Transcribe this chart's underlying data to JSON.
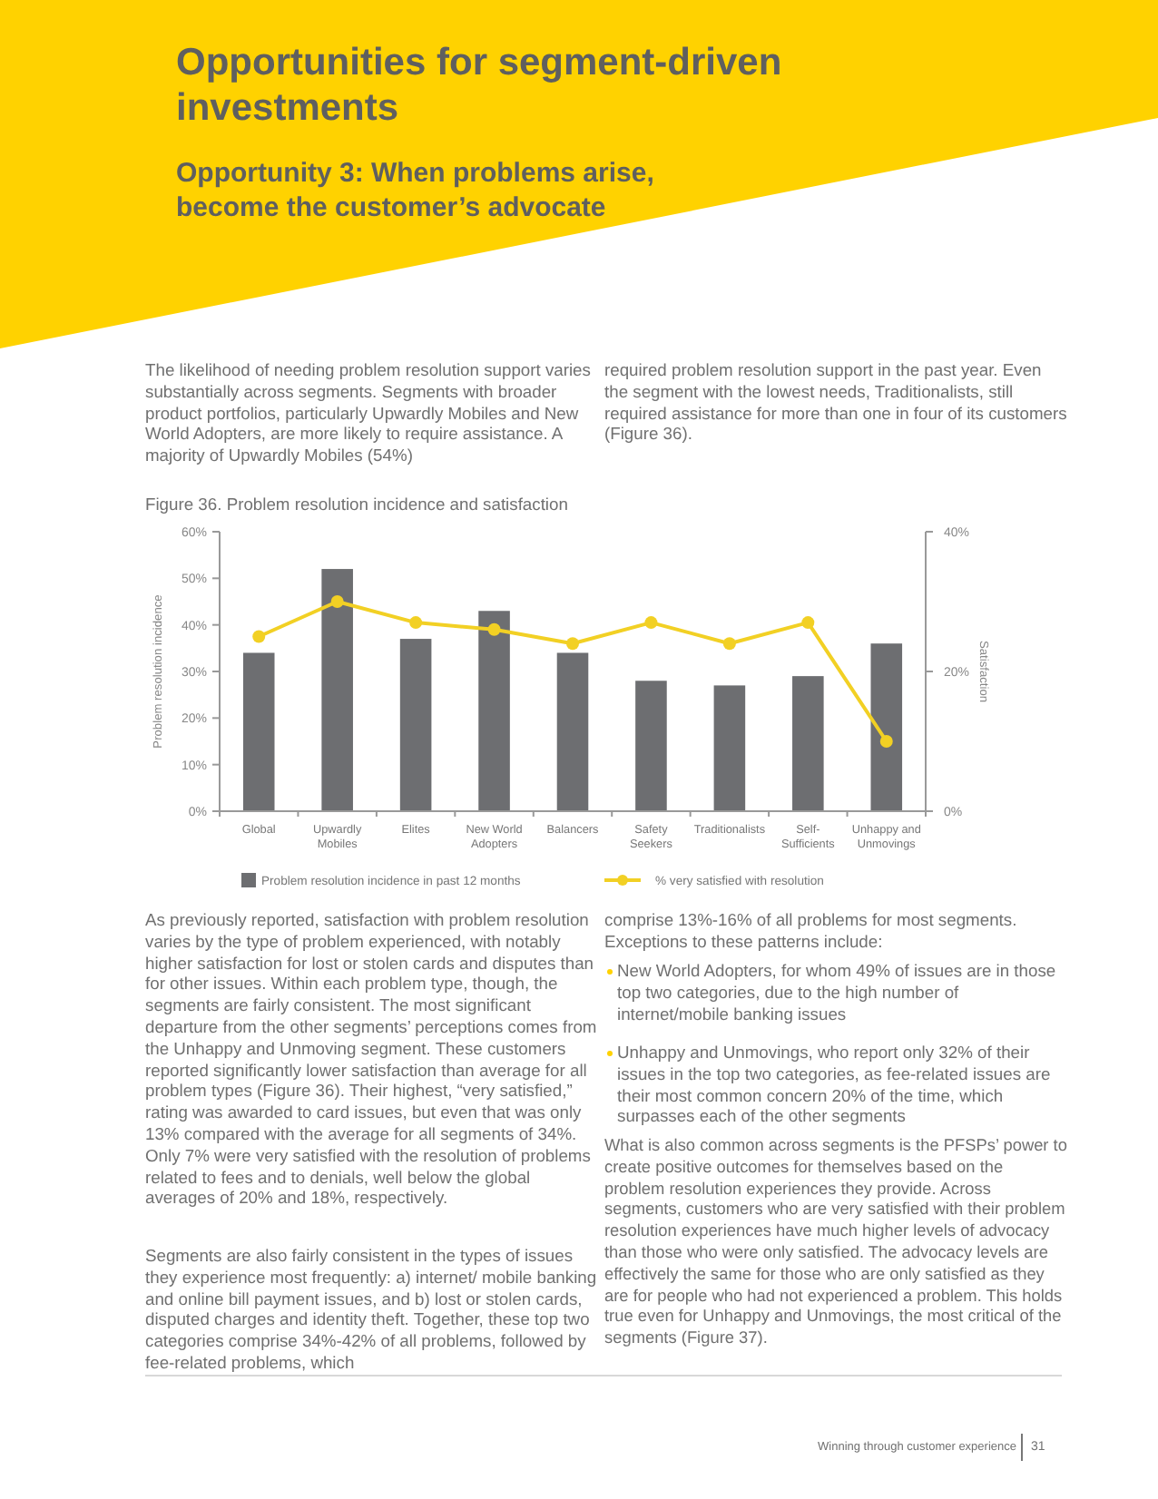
{
  "chart_data": {
    "type": "bar",
    "title": "Opportunities for segment-driven investments",
    "subtitle": "Opportunity 3: When problems arise, become the customer’s advocate",
    "ylabel": "Problem resolution incidence",
    "y2label": "Satisfaction",
    "categories": [
      "Global",
      "Upwardly Mobiles",
      "Elites",
      "New World Adopters",
      "Balancers",
      "Safety Seekers",
      "Traditionalists",
      "Self-Sufficients",
      "Unhappy and Unmovings"
    ],
    "series": [
      {
        "name": "Problem resolution incidence in past 12 months",
        "color": "#6d6e71",
        "values": [
          34,
          52,
          37,
          43,
          34,
          28,
          27,
          29,
          36
        ]
      },
      {
        "name": "% very satisfied with resolution",
        "type": "line",
        "axis": "y2",
        "color": "#f2d024",
        "values": [
          25,
          30,
          27,
          26,
          24,
          27,
          24,
          27,
          10
        ]
      }
    ],
    "ylim": [
      0,
      60
    ],
    "yticks": [
      {
        "value": 0,
        "label": "0%"
      },
      {
        "value": 10,
        "label": "10%"
      },
      {
        "value": 20,
        "label": "20%"
      },
      {
        "value": 30,
        "label": "30%"
      },
      {
        "value": 40,
        "label": "40%"
      },
      {
        "value": 50,
        "label": "50%"
      },
      {
        "value": 60,
        "label": "60%"
      }
    ],
    "y2lim": [
      0,
      40
    ],
    "y2ticks": [
      {
        "value": 0,
        "label": "0%"
      },
      {
        "value": 20,
        "label": "20%"
      },
      {
        "value": 40,
        "label": "40%"
      }
    ],
    "grid": false,
    "legend": "bottom",
    "marker": "circle",
    "line_style": "solid",
    "annotations": [
      "The likelihood of needing problem resolution support varies substantially across segments. Segments with broader product portfolios, particularly Upwardly Mobiles and New World Adopters, are more likely to require assistance. A majority of Upwardly Mobiles (54%)",
      "required problem resolution support in the past year. Even the segment with the lowest needs, Traditionalists, still required assistance for more than one in four of its customers (Figure 36).",
      "Figure 36.  Problem resolution incidence and satisfaction",
      "As previously reported, satisfaction with problem resolution varies by the type of problem experienced, with notably higher satisfaction for lost or stolen cards and disputes than for other issues. Within each problem type, though, the segments are fairly consistent. The most significant departure from the other segments’ perceptions comes from the Unhappy and Unmoving segment. These customers reported significantly lower satisfaction than average for all problem types (Figure 36). Their highest, “very satisfied,” rating was awarded to card issues, but even that was only 13% compared with the average for all segments of 34%. Only 7% were very satisfied with the resolution of problems related to fees and to denials, well below the global averages of 20% and 18%, respectively.",
      "Segments are also fairly consistent in the types of issues they experience most frequently: a) internet/ mobile banking and online bill payment issues, and b) lost or stolen cards, disputed charges and identity theft. Together, these top two categories comprise 34%-42% of all problems, followed by fee-related problems, which",
      "comprise 13%-16% of all problems for most segments. Exceptions to these patterns include:",
      "New World Adopters, for whom 49% of issues are in those top two categories, due to the high number of internet/mobile banking issues",
      "Unhappy and Unmovings, who report only 32% of their issues in the top two categories, as fee-related issues are their most common concern 20% of the time, which surpasses each of the other segments",
      "What is also common across segments is the PFSPs’ power to create positive outcomes for themselves based on the problem resolution experiences they provide. Across segments, customers who are very satisfied with their problem resolution experiences have much higher levels of advocacy than those who were only satisfied. The advocacy levels are effectively the same for those who are only satisfied as they are for people who had not experienced a problem. This holds true even for Unhappy and Unmovings, the most critical of the segments (Figure 37).",
      "Winning through customer experience",
      "31"
    ]
  }
}
